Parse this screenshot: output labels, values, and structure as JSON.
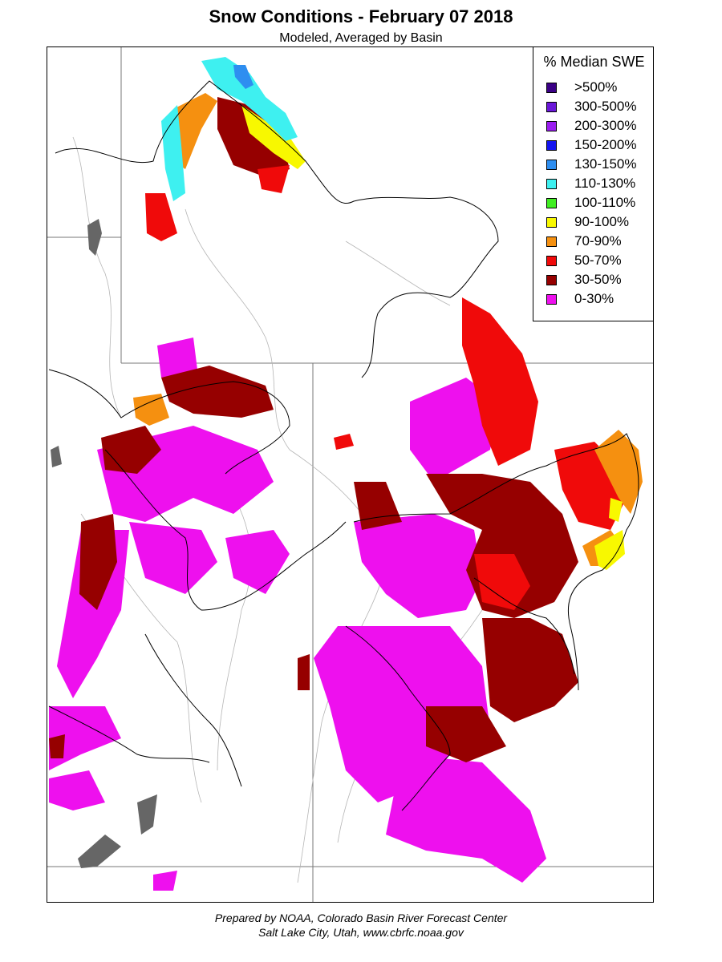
{
  "title": "Snow Conditions - February 07 2018",
  "subtitle": "Modeled, Averaged by Basin",
  "legend": {
    "title": "% Median SWE",
    "items": [
      {
        "label": ">500%",
        "color": "#3b0086"
      },
      {
        "label": "300-500%",
        "color": "#6a17d8"
      },
      {
        "label": "200-300%",
        "color": "#9a1ef0"
      },
      {
        "label": "150-200%",
        "color": "#1414f0"
      },
      {
        "label": "130-150%",
        "color": "#2e8ef0"
      },
      {
        "label": "110-130%",
        "color": "#3ef0f0"
      },
      {
        "label": "100-110%",
        "color": "#40ee22"
      },
      {
        "label": "90-100%",
        "color": "#f8f800"
      },
      {
        "label": "70-90%",
        "color": "#f59010"
      },
      {
        "label": "50-70%",
        "color": "#f00a0a"
      },
      {
        "label": "30-50%",
        "color": "#960000"
      },
      {
        "label": "0-30%",
        "color": "#ee10ee"
      }
    ]
  },
  "footer": {
    "line1": "Prepared by NOAA, Colorado Basin River Forecast Center",
    "line2": "Salt Lake City, Utah, www.cbrfc.noaa.gov"
  }
}
